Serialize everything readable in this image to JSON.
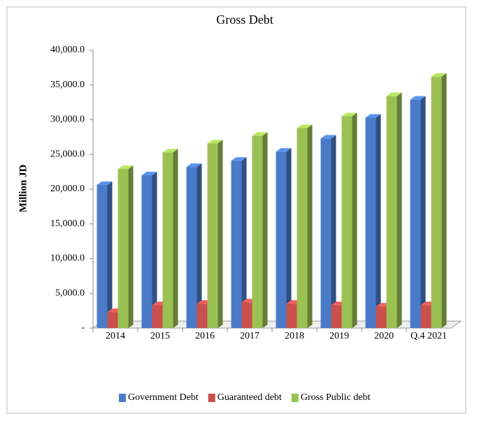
{
  "chart_data": {
    "type": "bar",
    "title": "Gross Debt",
    "y_label": "Million JD",
    "categories": [
      "2014",
      "2015",
      "2016",
      "2017",
      "2018",
      "2019",
      "2020",
      "Q.4 2021"
    ],
    "series": [
      {
        "name": "Government Debt",
        "color": "#4a7bc8",
        "values": [
          20600,
          22000,
          23200,
          24100,
          25400,
          27300,
          30300,
          32900
        ]
      },
      {
        "name": "Guaranteed debt",
        "color": "#c9504c",
        "values": [
          2300,
          3300,
          3500,
          3700,
          3500,
          3300,
          3100,
          3300
        ]
      },
      {
        "name": "Gross Public debt",
        "color": "#9bc153",
        "values": [
          22900,
          25300,
          26600,
          27700,
          28800,
          30500,
          33400,
          36200
        ]
      }
    ],
    "ylim": [
      0,
      40000
    ],
    "yticks": [
      {
        "value": 0,
        "label": "-"
      },
      {
        "value": 5000,
        "label": "5,000.0"
      },
      {
        "value": 10000,
        "label": "10,000.0"
      },
      {
        "value": 15000,
        "label": "15,000.0"
      },
      {
        "value": 20000,
        "label": "20,000.0"
      },
      {
        "value": 25000,
        "label": "25,000.0"
      },
      {
        "value": 30000,
        "label": "30,000.0"
      },
      {
        "value": 35000,
        "label": "35,000.0"
      },
      {
        "value": 40000,
        "label": "40,000.0"
      }
    ],
    "legend": "bottom"
  }
}
